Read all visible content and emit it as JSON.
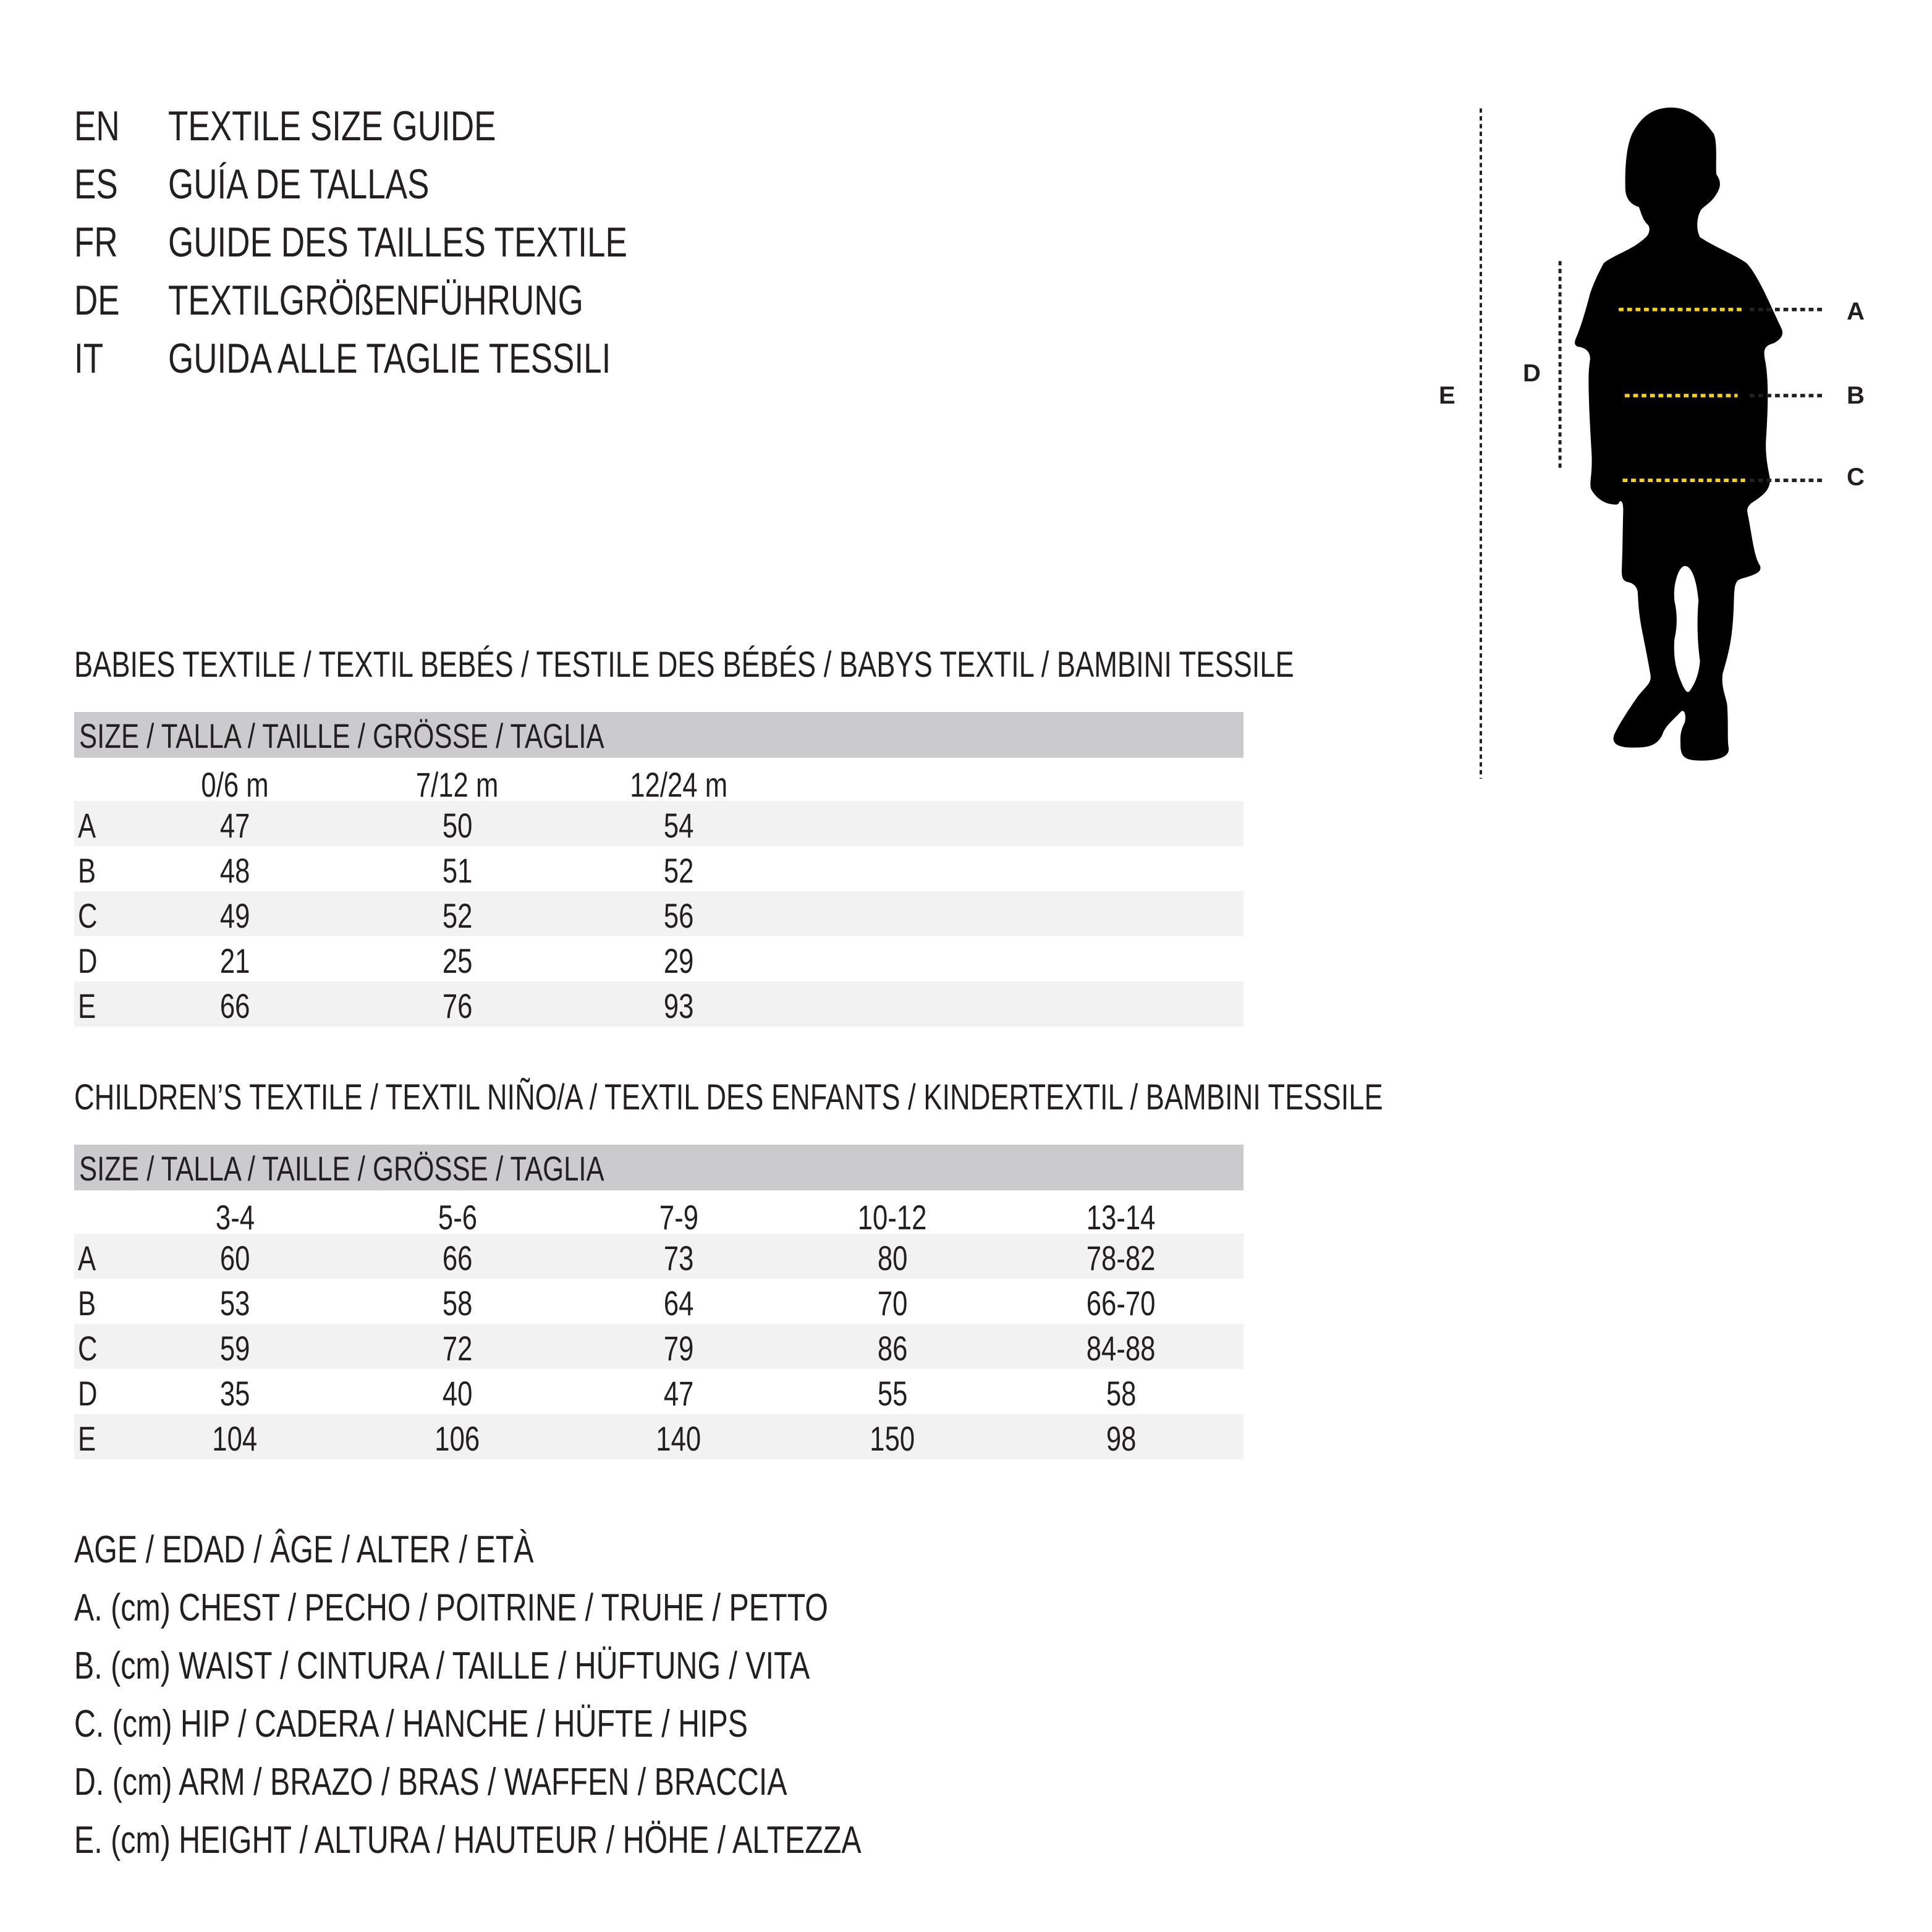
{
  "header": {
    "lines": [
      {
        "code": "EN",
        "text": "TEXTILE SIZE GUIDE"
      },
      {
        "code": "ES",
        "text": "GUÍA DE TALLAS"
      },
      {
        "code": "FR",
        "text": "GUIDE DES TAILLES TEXTILE"
      },
      {
        "code": "DE",
        "text": "TEXTILGRÖßENFÜHRUNG"
      },
      {
        "code": "IT",
        "text": "GUIDA ALLE TAGLIE TESSILI"
      }
    ]
  },
  "figure": {
    "labels": {
      "A": "A",
      "B": "B",
      "C": "C",
      "D": "D",
      "E": "E"
    },
    "colors": {
      "silhouette": "#000000",
      "measure_line": "#f4d11a",
      "guide_line": "#231f20"
    }
  },
  "babies": {
    "title": "BABIES TEXTILE / TEXTIL BEBÉS / TESTILE DES BÉBÉS / BABYS TEXTIL / BAMBINI TESSILE",
    "size_header": "SIZE / TALLA / TAILLE / GRÖSSE / TAGLIA",
    "columns": [
      "0/6 m",
      "7/12 m",
      "12/24 m"
    ],
    "rows": [
      {
        "label": "A",
        "values": [
          "47",
          "50",
          "54"
        ]
      },
      {
        "label": "B",
        "values": [
          "48",
          "51",
          "52"
        ]
      },
      {
        "label": "C",
        "values": [
          "49",
          "52",
          "56"
        ]
      },
      {
        "label": "D",
        "values": [
          "21",
          "25",
          "29"
        ]
      },
      {
        "label": "E",
        "values": [
          "66",
          "76",
          "93"
        ]
      }
    ]
  },
  "children": {
    "title": "CHILDREN’S TEXTILE / TEXTIL NIÑO/A / TEXTIL DES ENFANTS / KINDERTEXTIL / BAMBINI TESSILE",
    "size_header": "SIZE / TALLA / TAILLE / GRÖSSE / TAGLIA",
    "columns": [
      "3-4",
      "5-6",
      "7-9",
      "10-12",
      "13-14"
    ],
    "rows": [
      {
        "label": "A",
        "values": [
          "60",
          "66",
          "73",
          "80",
          "78-82"
        ]
      },
      {
        "label": "B",
        "values": [
          "53",
          "58",
          "64",
          "70",
          "66-70"
        ]
      },
      {
        "label": "C",
        "values": [
          "59",
          "72",
          "79",
          "86",
          "84-88"
        ]
      },
      {
        "label": "D",
        "values": [
          "35",
          "40",
          "47",
          "55",
          "58"
        ]
      },
      {
        "label": "E",
        "values": [
          "104",
          "106",
          "140",
          "150",
          "98"
        ]
      }
    ]
  },
  "legend": [
    "AGE / EDAD / ÂGE / ALTER / ETÀ",
    "A. (cm) CHEST / PECHO / POITRINE / TRUHE / PETTO",
    "B. (cm) WAIST / CINTURA / TAILLE / HÜFTUNG / VITA",
    "C. (cm) HIP / CADERA / HANCHE / HÜFTE / HIPS",
    "D. (cm) ARM / BRAZO / BRAS / WAFFEN / BRACCIA",
    "E. (cm) HEIGHT / ALTURA / HAUTEUR / HÖHE / ALTEZZA"
  ]
}
